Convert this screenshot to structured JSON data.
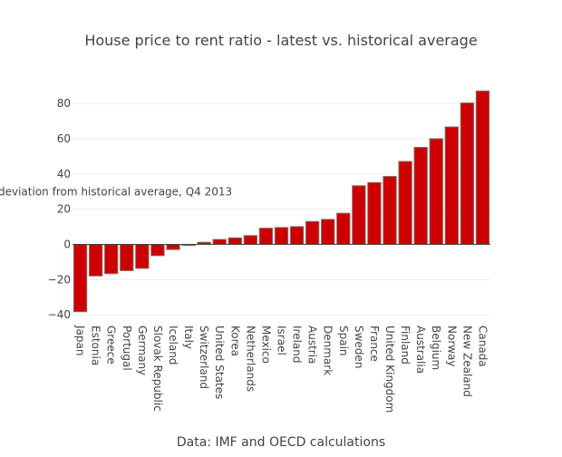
{
  "chart_data": {
    "type": "bar",
    "title": "House price to rent ratio - latest vs. historical average",
    "xlabel": "Data: IMF and OECD calculations",
    "ylabel": "deviation from historical average, Q4 2013",
    "ylim": [
      -44,
      95
    ],
    "yticks": [
      -40,
      -20,
      0,
      20,
      40,
      60,
      80
    ],
    "ytick_labels": [
      "−40",
      "−20",
      "0",
      "20",
      "40",
      "60",
      "80"
    ],
    "grid": true,
    "bar_color": "#cc0000",
    "bar_outline": "#8a6a6a",
    "categories": [
      "Japan",
      "Estonia",
      "Greece",
      "Portugal",
      "Germany",
      "Slovak Republic",
      "Iceland",
      "Italy",
      "Switzerland",
      "United States",
      "Korea",
      "Netherlands",
      "Mexico",
      "Israel",
      "Ireland",
      "Austria",
      "Denmark",
      "Spain",
      "Sweden",
      "France",
      "United Kingdom",
      "Finland",
      "Australia",
      "Belgium",
      "Norway",
      "New Zealand",
      "Canada"
    ],
    "values": [
      -38.2,
      -17.9,
      -16.6,
      -14.9,
      -13.6,
      -6.4,
      -2.9,
      -0.6,
      1.2,
      2.8,
      3.7,
      5.0,
      9.2,
      9.6,
      10.1,
      13.0,
      14.2,
      17.7,
      33.3,
      35.1,
      38.6,
      47.1,
      55.1,
      60.0,
      66.7,
      80.3,
      87.1
    ]
  }
}
